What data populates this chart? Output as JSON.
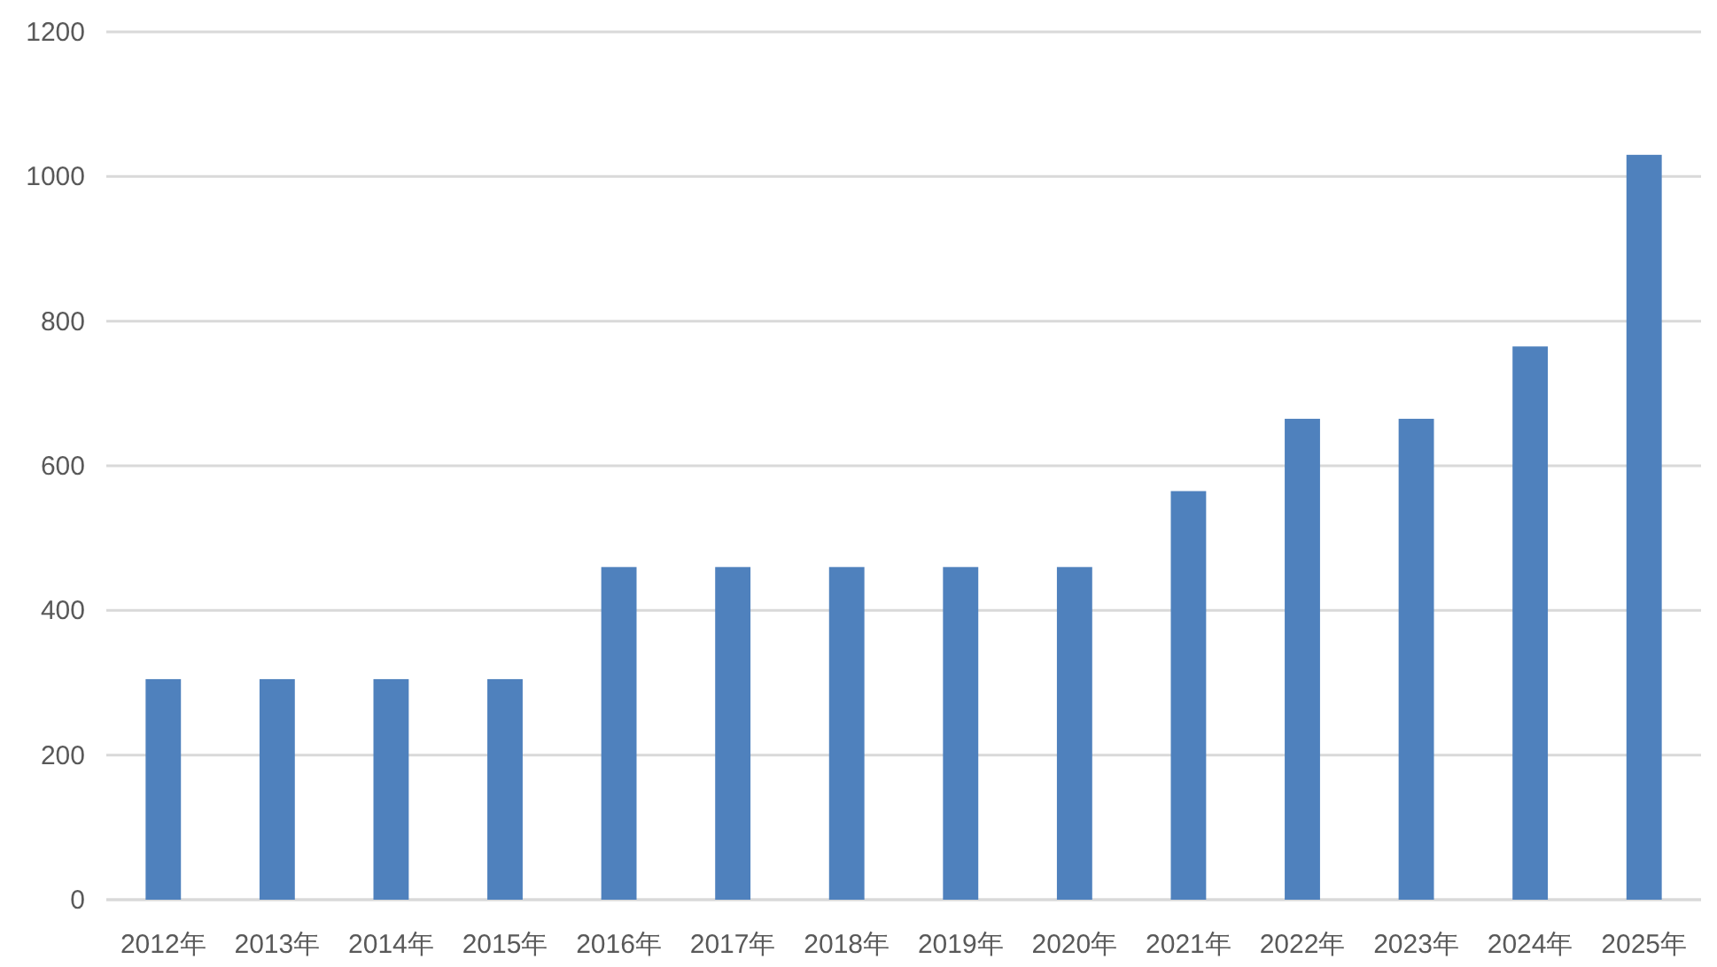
{
  "chart_data": {
    "type": "bar",
    "categories": [
      "2012年",
      "2013年",
      "2014年",
      "2015年",
      "2016年",
      "2017年",
      "2018年",
      "2019年",
      "2020年",
      "2021年",
      "2022年",
      "2023年",
      "2024年",
      "2025年"
    ],
    "values": [
      305,
      305,
      305,
      305,
      460,
      460,
      460,
      460,
      460,
      565,
      665,
      665,
      765,
      1030
    ],
    "color": "#4f81bd",
    "ylim": [
      0,
      1200
    ],
    "yticks": [
      0,
      200,
      400,
      600,
      800,
      1000,
      1200
    ],
    "grid": "y"
  }
}
